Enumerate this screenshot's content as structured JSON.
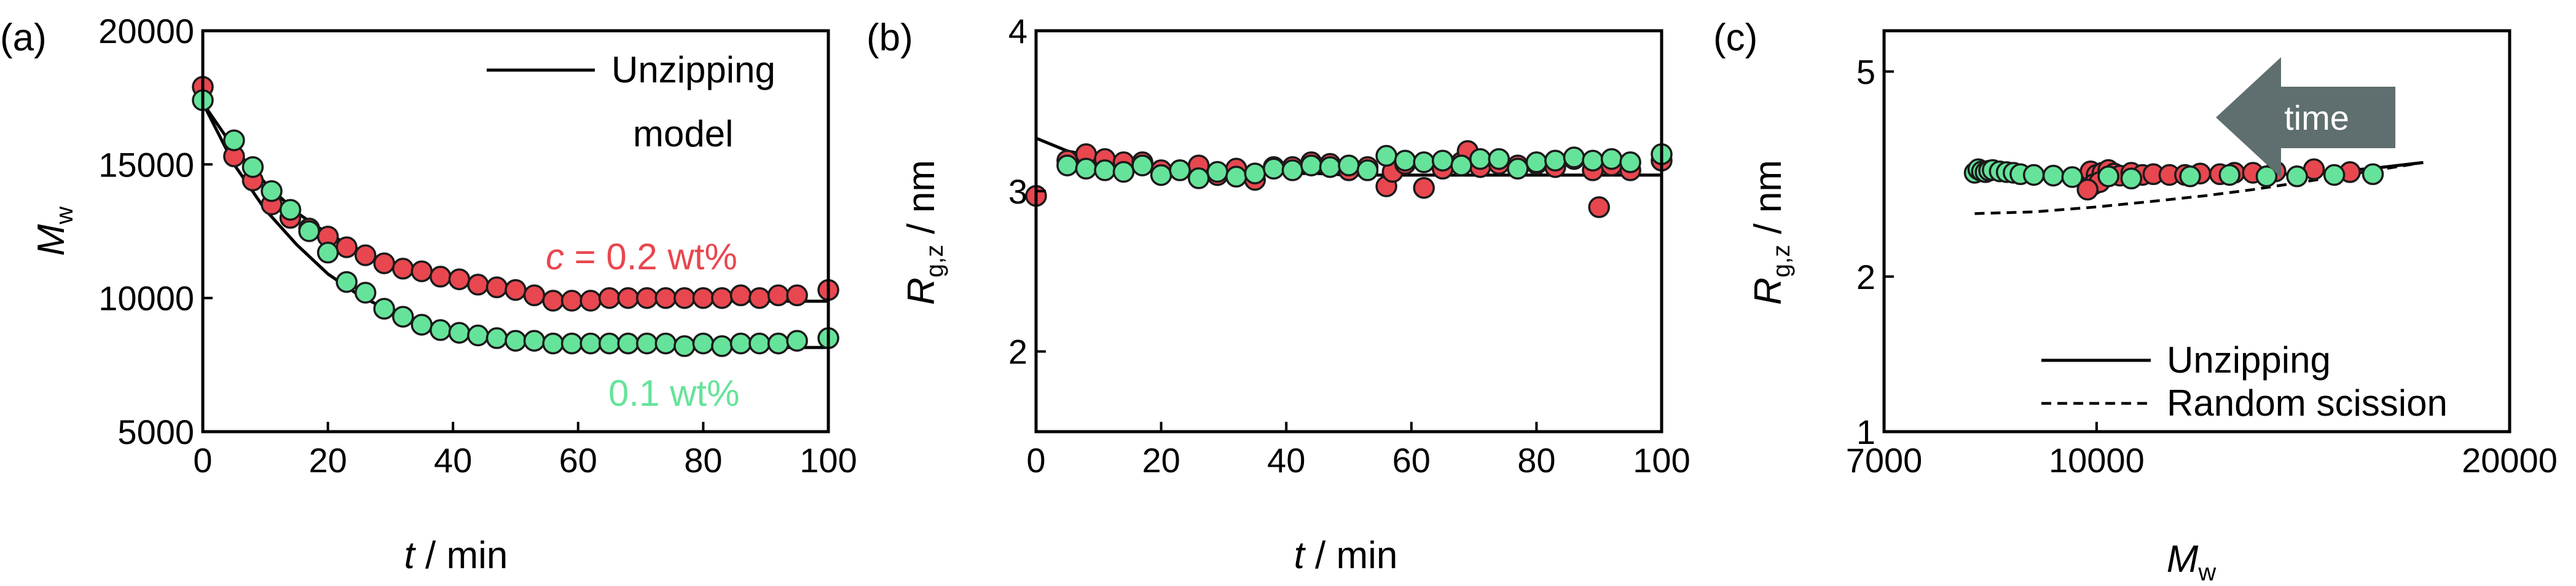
{
  "colors": {
    "red": "#e8474f",
    "green": "#66e39a",
    "arrow": "#5f6e6e"
  },
  "chart_data": [
    {
      "panel": "(a)",
      "type": "scatter",
      "xlabel": "t / min",
      "ylabel": "M_w",
      "xlim": [
        0,
        100
      ],
      "ylim": [
        5000,
        20000
      ],
      "xticks": [
        "0",
        "20",
        "40",
        "60",
        "80",
        "100"
      ],
      "yticks": [
        "5000",
        "10000",
        "15000",
        "20000"
      ],
      "legend": "Unzipping model",
      "annotations": {
        "red": "c = 0.2 wt%",
        "green": "0.1 wt%"
      },
      "series": [
        {
          "name": "c = 0.2 wt%",
          "color": "red",
          "x": [
            0,
            5,
            8,
            11,
            14,
            17,
            20,
            23,
            26,
            29,
            32,
            35,
            38,
            41,
            44,
            47,
            50,
            53,
            56,
            59,
            62,
            65,
            68,
            71,
            74,
            77,
            80,
            83,
            86,
            89,
            92,
            95,
            100
          ],
          "y": [
            17900,
            15300,
            14400,
            13500,
            13000,
            12600,
            12300,
            11900,
            11600,
            11300,
            11100,
            11000,
            10800,
            10700,
            10500,
            10400,
            10300,
            10100,
            9900,
            9900,
            9900,
            10000,
            10000,
            10000,
            10000,
            10000,
            10000,
            10000,
            10100,
            10000,
            10100,
            10100,
            10300
          ]
        },
        {
          "name": "0.1 wt%",
          "color": "green",
          "x": [
            0,
            5,
            8,
            11,
            14,
            17,
            20,
            23,
            26,
            29,
            32,
            35,
            38,
            41,
            44,
            47,
            50,
            53,
            56,
            59,
            62,
            65,
            68,
            71,
            74,
            77,
            80,
            83,
            86,
            89,
            92,
            95,
            100
          ],
          "y": [
            17400,
            15900,
            14900,
            14000,
            13300,
            12500,
            11700,
            10600,
            10200,
            9600,
            9300,
            9000,
            8800,
            8700,
            8600,
            8500,
            8400,
            8400,
            8300,
            8300,
            8300,
            8300,
            8300,
            8300,
            8300,
            8200,
            8300,
            8200,
            8300,
            8300,
            8300,
            8400,
            8500
          ]
        },
        {
          "name": "Unzipping model",
          "kind": "line",
          "color": "black",
          "x": [
            0,
            5,
            10,
            15,
            20,
            25,
            30,
            35,
            40,
            45,
            50,
            55,
            60,
            65,
            70,
            75,
            80,
            85,
            90,
            95,
            100
          ],
          "y_upper": [
            17300,
            15600,
            14300,
            13200,
            12400,
            11800,
            11300,
            10900,
            10600,
            10400,
            10200,
            10100,
            10000,
            9950,
            9920,
            9900,
            9890,
            9880,
            9880,
            9880,
            9880
          ],
          "y_lower": [
            17300,
            15000,
            13300,
            12000,
            10900,
            10100,
            9500,
            9100,
            8800,
            8600,
            8450,
            8350,
            8270,
            8220,
            8190,
            8170,
            8160,
            8150,
            8150,
            8150,
            8150
          ]
        }
      ]
    },
    {
      "panel": "(b)",
      "type": "scatter",
      "xlabel": "t / min",
      "ylabel": "R_g,z / nm",
      "xlim": [
        0,
        100
      ],
      "ylim": [
        1.5,
        4
      ],
      "xticks": [
        "0",
        "20",
        "40",
        "60",
        "80",
        "100"
      ],
      "yticks": [
        "2",
        "3",
        "4"
      ],
      "series": [
        {
          "name": "c = 0.2 wt%",
          "color": "red",
          "x": [
            0,
            5,
            8,
            11,
            14,
            17,
            20,
            23,
            26,
            29,
            32,
            35,
            38,
            41,
            44,
            47,
            50,
            53,
            56,
            57,
            59,
            62,
            65,
            68,
            69,
            71,
            74,
            77,
            80,
            83,
            86,
            89,
            90,
            92,
            95,
            100
          ],
          "y": [
            2.97,
            3.19,
            3.23,
            3.2,
            3.18,
            3.18,
            3.13,
            3.13,
            3.16,
            3.1,
            3.14,
            3.07,
            3.15,
            3.15,
            3.18,
            3.17,
            3.13,
            3.15,
            3.03,
            3.12,
            3.17,
            3.02,
            3.14,
            3.18,
            3.25,
            3.15,
            3.17,
            3.16,
            3.17,
            3.15,
            3.2,
            3.13,
            2.9,
            3.16,
            3.13,
            3.19
          ]
        },
        {
          "name": "0.1 wt%",
          "color": "green",
          "x": [
            5,
            8,
            11,
            14,
            17,
            20,
            23,
            26,
            29,
            32,
            35,
            38,
            41,
            44,
            47,
            50,
            53,
            56,
            59,
            62,
            65,
            68,
            71,
            74,
            77,
            80,
            83,
            86,
            89,
            92,
            95,
            100
          ],
          "y": [
            3.16,
            3.14,
            3.13,
            3.12,
            3.16,
            3.1,
            3.13,
            3.08,
            3.12,
            3.09,
            3.11,
            3.14,
            3.13,
            3.16,
            3.15,
            3.16,
            3.13,
            3.22,
            3.19,
            3.18,
            3.19,
            3.16,
            3.2,
            3.2,
            3.14,
            3.18,
            3.19,
            3.21,
            3.19,
            3.2,
            3.18,
            3.23
          ]
        },
        {
          "name": "Unzipping",
          "kind": "line",
          "color": "black",
          "x": [
            0,
            5,
            10,
            15,
            20,
            25,
            30,
            35,
            40,
            45,
            50,
            60,
            70,
            80,
            90,
            100
          ],
          "y": [
            3.33,
            3.25,
            3.21,
            3.18,
            3.16,
            3.14,
            3.13,
            3.12,
            3.11,
            3.11,
            3.1,
            3.1,
            3.1,
            3.1,
            3.1,
            3.1
          ]
        }
      ]
    },
    {
      "panel": "(c)",
      "type": "scatter",
      "xlabel": "M_w",
      "ylabel": "R_g,z / nm",
      "xscale": "log",
      "yscale": "log",
      "xlim": [
        7000,
        20000
      ],
      "ylim": [
        1,
        6
      ],
      "xticks": [
        "7000",
        "10000",
        "20000"
      ],
      "yticks": [
        "1",
        "2",
        "5"
      ],
      "arrow_label": "time",
      "legend": [
        "Unzipping",
        "Random scission"
      ],
      "series": [
        {
          "name": "c = 0.2 wt%",
          "color": "red",
          "x": [
            9900,
            10000,
            10100,
            10200,
            10300,
            10400,
            10600,
            10800,
            11000,
            11300,
            11600,
            11900,
            12300,
            12600,
            13000,
            13500,
            14400,
            15300,
            9950,
            10050,
            9850
          ],
          "y": [
            3.2,
            3.15,
            3.18,
            3.22,
            3.17,
            3.14,
            3.18,
            3.15,
            3.16,
            3.15,
            3.15,
            3.17,
            3.16,
            3.18,
            3.18,
            3.2,
            3.23,
            3.19,
            3.02,
            3.05,
            2.95
          ]
        },
        {
          "name": "0.1 wt%",
          "color": "green",
          "x": [
            8150,
            8200,
            8250,
            8300,
            8350,
            8400,
            8500,
            8600,
            8700,
            8800,
            9000,
            9300,
            9600,
            10200,
            10600,
            11700,
            12500,
            13300,
            14000,
            14900,
            15900
          ],
          "y": [
            3.18,
            3.23,
            3.2,
            3.19,
            3.21,
            3.22,
            3.2,
            3.19,
            3.18,
            3.16,
            3.15,
            3.14,
            3.12,
            3.13,
            3.1,
            3.13,
            3.15,
            3.13,
            3.13,
            3.15,
            3.16
          ]
        },
        {
          "name": "Unzipping",
          "kind": "line",
          "style": "solid",
          "x": [
            8150,
            9000,
            10000,
            11000,
            12000,
            13000,
            14000,
            15000,
            16000,
            17300
          ],
          "y": [
            3.1,
            3.1,
            3.1,
            3.11,
            3.12,
            3.14,
            3.17,
            3.2,
            3.25,
            3.33
          ]
        },
        {
          "name": "Random scission",
          "kind": "line",
          "style": "dashed",
          "x": [
            8150,
            9000,
            10000,
            11000,
            12000,
            13000,
            14000,
            15000,
            16000,
            17300
          ],
          "y": [
            2.65,
            2.67,
            2.73,
            2.8,
            2.87,
            2.95,
            3.04,
            3.13,
            3.22,
            3.33
          ]
        }
      ]
    }
  ]
}
